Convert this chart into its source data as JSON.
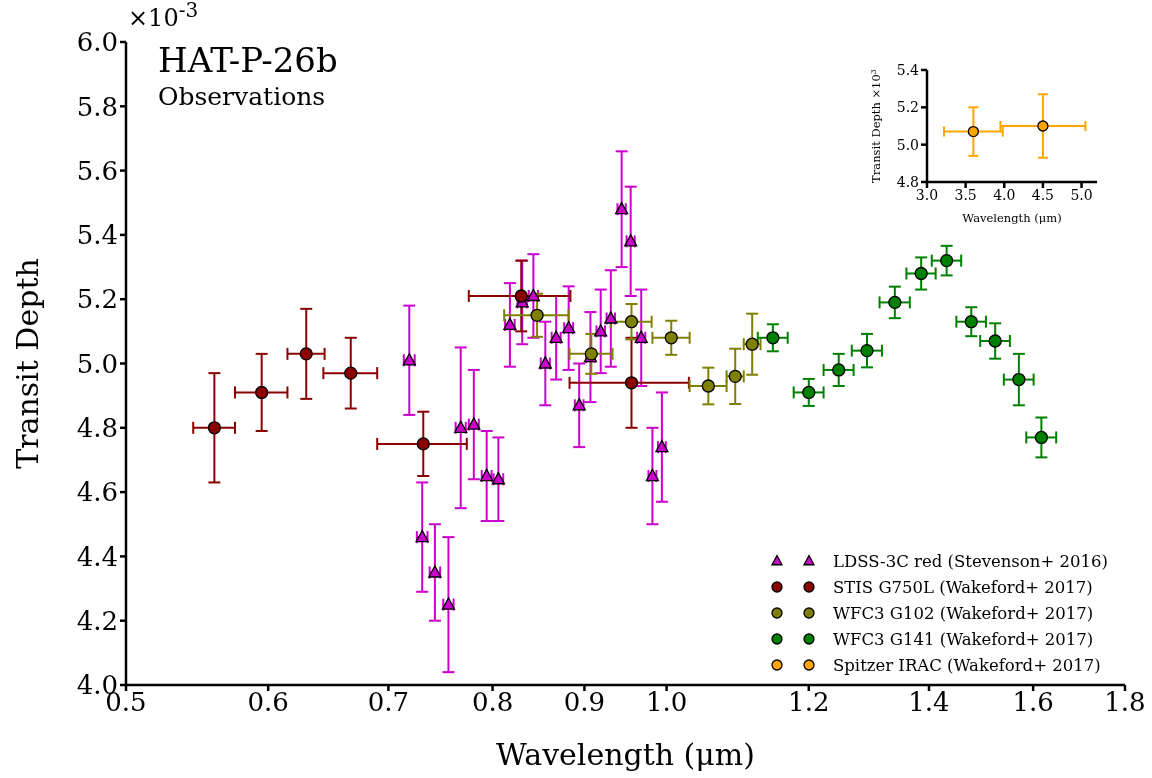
{
  "chart_data": [
    {
      "type": "scatter",
      "title": "HAT-P-26b",
      "subtitle": "Observations",
      "xlabel": "Wavelength (μm)",
      "ylabel": "Transit Depth",
      "annotations": [
        "×10$^{-3}$"
      ],
      "log": "x",
      "xlim": [
        0.5,
        1.8
      ],
      "xticks": [
        0.5,
        0.6,
        0.7,
        0.8,
        0.9,
        {
          "value": 1.0,
          "label": "1.0"
        },
        1.2,
        1.4,
        1.6,
        1.8
      ],
      "ylim": [
        4.0,
        6.0
      ],
      "yticks": [
        {
          "value": 4.0,
          "label": "4.0"
        },
        4.2,
        4.4,
        4.6,
        4.8,
        {
          "value": 5.0,
          "label": "5.0"
        },
        5.2,
        5.4,
        5.6,
        5.8,
        {
          "value": 6.0,
          "label": "6.0"
        }
      ],
      "legend": "bottom right",
      "marker": "circle",
      "series": [
        {
          "name": "LDSS-3C red (Stevenson+ 2016)",
          "color": "#cc00cc",
          "marker": "triangle",
          "x": [
            0.719,
            0.731,
            0.743,
            0.756,
            0.768,
            0.781,
            0.794,
            0.806,
            0.818,
            0.831,
            0.843,
            0.856,
            0.868,
            0.882,
            0.894,
            0.907,
            0.919,
            0.931,
            0.944,
            0.955,
            0.968,
            0.982,
            0.994
          ],
          "values": [
            5.01,
            4.46,
            4.35,
            4.25,
            4.8,
            4.81,
            4.65,
            4.64,
            5.12,
            5.19,
            5.21,
            5.0,
            5.08,
            5.11,
            4.87,
            5.02,
            5.1,
            5.14,
            5.48,
            5.38,
            5.08,
            4.65,
            4.74
          ],
          "errors": [
            0.17,
            0.17,
            0.15,
            0.21,
            0.25,
            0.17,
            0.14,
            0.13,
            0.13,
            0.13,
            0.13,
            0.13,
            0.13,
            0.13,
            0.13,
            0.14,
            0.13,
            0.15,
            0.18,
            0.17,
            0.15,
            0.15,
            0.17
          ],
          "xerrors": [
            0.005,
            0.005,
            0.005,
            0.005,
            0.005,
            0.005,
            0.005,
            0.005,
            0.005,
            0.005,
            0.005,
            0.005,
            0.005,
            0.005,
            0.005,
            0.005,
            0.005,
            0.005,
            0.005,
            0.005,
            0.005,
            0.005,
            0.005
          ]
        },
        {
          "name": "STIS G750L (Wakeford+ 2017)",
          "color": "#8b0000",
          "x": [
            0.56,
            0.595,
            0.63,
            0.667,
            0.732,
            0.83,
            0.956
          ],
          "values": [
            4.8,
            4.91,
            5.03,
            4.97,
            4.75,
            5.21,
            4.94
          ],
          "errors": [
            0.17,
            0.12,
            0.14,
            0.11,
            0.1,
            0.11,
            0.14
          ],
          "xerrors": [
            0.015,
            0.02,
            0.015,
            0.023,
            0.042,
            0.054,
            0.073
          ]
        },
        {
          "name": "WFC3 G102 (Wakeford+ 2017)",
          "color": "#808000",
          "x": [
            0.847,
            0.908,
            0.956,
            1.006,
            1.055,
            1.092,
            1.116
          ],
          "values": [
            5.15,
            5.03,
            5.13,
            5.08,
            4.93,
            4.96,
            5.06
          ],
          "errors": [
            0.067,
            0.062,
            0.055,
            0.053,
            0.057,
            0.086,
            0.095
          ],
          "xerrors": [
            0.035,
            0.025,
            0.025,
            0.024,
            0.025,
            0.012,
            0.012
          ]
        },
        {
          "name": "WFC3 G141 (Wakeford+ 2017)",
          "color": "#008000",
          "x": [
            1.146,
            1.2,
            1.247,
            1.293,
            1.34,
            1.386,
            1.432,
            1.478,
            1.524,
            1.571,
            1.617
          ],
          "values": [
            5.08,
            4.91,
            4.98,
            5.04,
            5.19,
            5.28,
            5.32,
            5.13,
            5.07,
            4.95,
            4.77
          ],
          "errors": [
            0.042,
            0.042,
            0.05,
            0.052,
            0.049,
            0.05,
            0.046,
            0.045,
            0.055,
            0.08,
            0.062
          ],
          "xerrors": [
            0.022,
            0.023,
            0.024,
            0.025,
            0.026,
            0.026,
            0.027,
            0.028,
            0.029,
            0.03,
            0.031
          ]
        }
      ]
    },
    {
      "type": "scatter",
      "xlabel": "Wavelength (μm)",
      "ylabel": "Transit Depth ×10$^{3}$",
      "xlim": [
        3.0,
        5.2
      ],
      "xticks": [
        {
          "value": 3.0,
          "label": "3.0"
        },
        3.5,
        {
          "value": 4.0,
          "label": "4.0"
        },
        4.5,
        {
          "value": 5.0,
          "label": "5.0"
        }
      ],
      "ylim": [
        4.8,
        5.4
      ],
      "yticks": [
        4.8,
        {
          "value": 5.0,
          "label": "5.0"
        },
        5.2,
        5.4
      ],
      "marker": "circle",
      "legend": "bottom left",
      "series": [
        {
          "name": "Spitzer IRAC (Wakeford+ 2017)",
          "color": "#ffa500",
          "x": [
            3.6,
            4.5
          ],
          "values": [
            5.07,
            5.1
          ],
          "errors": [
            0.13,
            0.17
          ],
          "xerrors": [
            0.38,
            0.55
          ]
        }
      ]
    }
  ]
}
